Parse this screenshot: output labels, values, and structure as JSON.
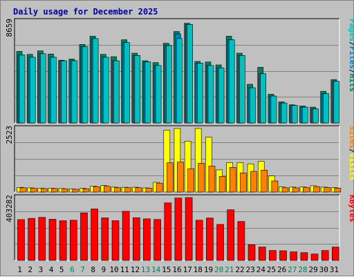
{
  "chart_data": [
    {
      "type": "bar",
      "title": "Daily usage for December 2025",
      "panel": "top",
      "ymax_label": "8659",
      "ylabel_parts": [
        {
          "text": "Pages",
          "color": "#00c0c0"
        },
        {
          "text": "/",
          "color": "#000000"
        },
        {
          "text": "Files",
          "color": "#0080c0"
        },
        {
          "text": "/",
          "color": "#000000"
        },
        {
          "text": "Hits",
          "color": "#008060"
        }
      ],
      "categories": [
        "1",
        "2",
        "3",
        "4",
        "5",
        "6",
        "7",
        "8",
        "9",
        "10",
        "11",
        "12",
        "13",
        "14",
        "15",
        "16",
        "17",
        "18",
        "19",
        "20",
        "21",
        "22",
        "23",
        "24",
        "25",
        "26",
        "27",
        "28",
        "29",
        "30",
        "31"
      ],
      "weekend_days": [
        "6",
        "7",
        "13",
        "14",
        "20",
        "21",
        "27",
        "28"
      ],
      "ylim": [
        0,
        8659
      ],
      "series": [
        {
          "name": "Hits",
          "color": "#008060",
          "values": [
            6100,
            5850,
            6150,
            5880,
            5350,
            5450,
            6700,
            7400,
            5850,
            5650,
            7100,
            5950,
            5300,
            5150,
            6800,
            7800,
            8500,
            5250,
            5200,
            4950,
            7400,
            5950,
            3300,
            4750,
            2450,
            1800,
            1550,
            1450,
            1350,
            2700,
            3700
          ]
        },
        {
          "name": "Files",
          "color": "#0080c0",
          "values": [
            5800,
            5600,
            5900,
            5600,
            5300,
            5300,
            6500,
            7200,
            5600,
            5300,
            6850,
            5750,
            5200,
            4900,
            6600,
            7600,
            8400,
            5100,
            4900,
            4700,
            7100,
            5750,
            3000,
            4200,
            2300,
            1700,
            1500,
            1350,
            1200,
            2500,
            3550
          ]
        },
        {
          "name": "Pages",
          "color": "#00c0c0",
          "values": [
            5800,
            5600,
            5900,
            5600,
            5300,
            5300,
            6500,
            7200,
            5600,
            5300,
            6850,
            5750,
            5200,
            4900,
            6600,
            7200,
            8400,
            5100,
            4900,
            4700,
            7100,
            5750,
            3000,
            4200,
            2300,
            1700,
            1500,
            1350,
            1200,
            2500,
            3550
          ]
        }
      ]
    },
    {
      "type": "bar",
      "panel": "middle",
      "ymax_label": "2523",
      "ylabel_parts": [
        {
          "text": "Sites",
          "color": "#ff8000"
        },
        {
          "text": "/",
          "color": "#000000"
        },
        {
          "text": "Visits",
          "color": "#ffff00"
        }
      ],
      "categories": [
        "1",
        "2",
        "3",
        "4",
        "5",
        "6",
        "7",
        "8",
        "9",
        "10",
        "11",
        "12",
        "13",
        "14",
        "15",
        "16",
        "17",
        "18",
        "19",
        "20",
        "21",
        "22",
        "23",
        "24",
        "25",
        "26",
        "27",
        "28",
        "29",
        "30",
        "31"
      ],
      "ylim": [
        0,
        2523
      ],
      "series": [
        {
          "name": "Visits",
          "color": "#ffff00",
          "values": [
            185,
            165,
            150,
            150,
            140,
            120,
            145,
            230,
            255,
            195,
            190,
            190,
            165,
            385,
            2460,
            2523,
            2020,
            2523,
            2180,
            880,
            1170,
            1170,
            1120,
            1220,
            640,
            200,
            195,
            200,
            250,
            195,
            175
          ]
        },
        {
          "name": "Sites",
          "color": "#ff8000",
          "values": [
            170,
            150,
            140,
            140,
            125,
            110,
            130,
            210,
            230,
            175,
            175,
            170,
            155,
            350,
            1160,
            1190,
            930,
            1140,
            1030,
            620,
            980,
            760,
            820,
            870,
            440,
            170,
            170,
            175,
            215,
            180,
            155
          ]
        }
      ]
    },
    {
      "type": "bar",
      "panel": "bottom",
      "ymax_label": "403282",
      "ylabel_parts": [
        {
          "text": "KBytes",
          "color": "#ff0000"
        }
      ],
      "categories": [
        "1",
        "2",
        "3",
        "4",
        "5",
        "6",
        "7",
        "8",
        "9",
        "10",
        "11",
        "12",
        "13",
        "14",
        "15",
        "16",
        "17",
        "18",
        "19",
        "20",
        "21",
        "22",
        "23",
        "24",
        "25",
        "26",
        "27",
        "28",
        "29",
        "30",
        "31"
      ],
      "ylim": [
        0,
        403282
      ],
      "series": [
        {
          "name": "KBytes",
          "color": "#ff0000",
          "values": [
            262000,
            270000,
            276000,
            264000,
            255000,
            258000,
            305000,
            330000,
            273000,
            255000,
            315000,
            274000,
            267000,
            263000,
            369000,
            400000,
            412000,
            258000,
            272000,
            231000,
            325000,
            250000,
            100000,
            86000,
            64000,
            62000,
            55000,
            50000,
            41000,
            64000,
            86000
          ]
        }
      ]
    }
  ]
}
